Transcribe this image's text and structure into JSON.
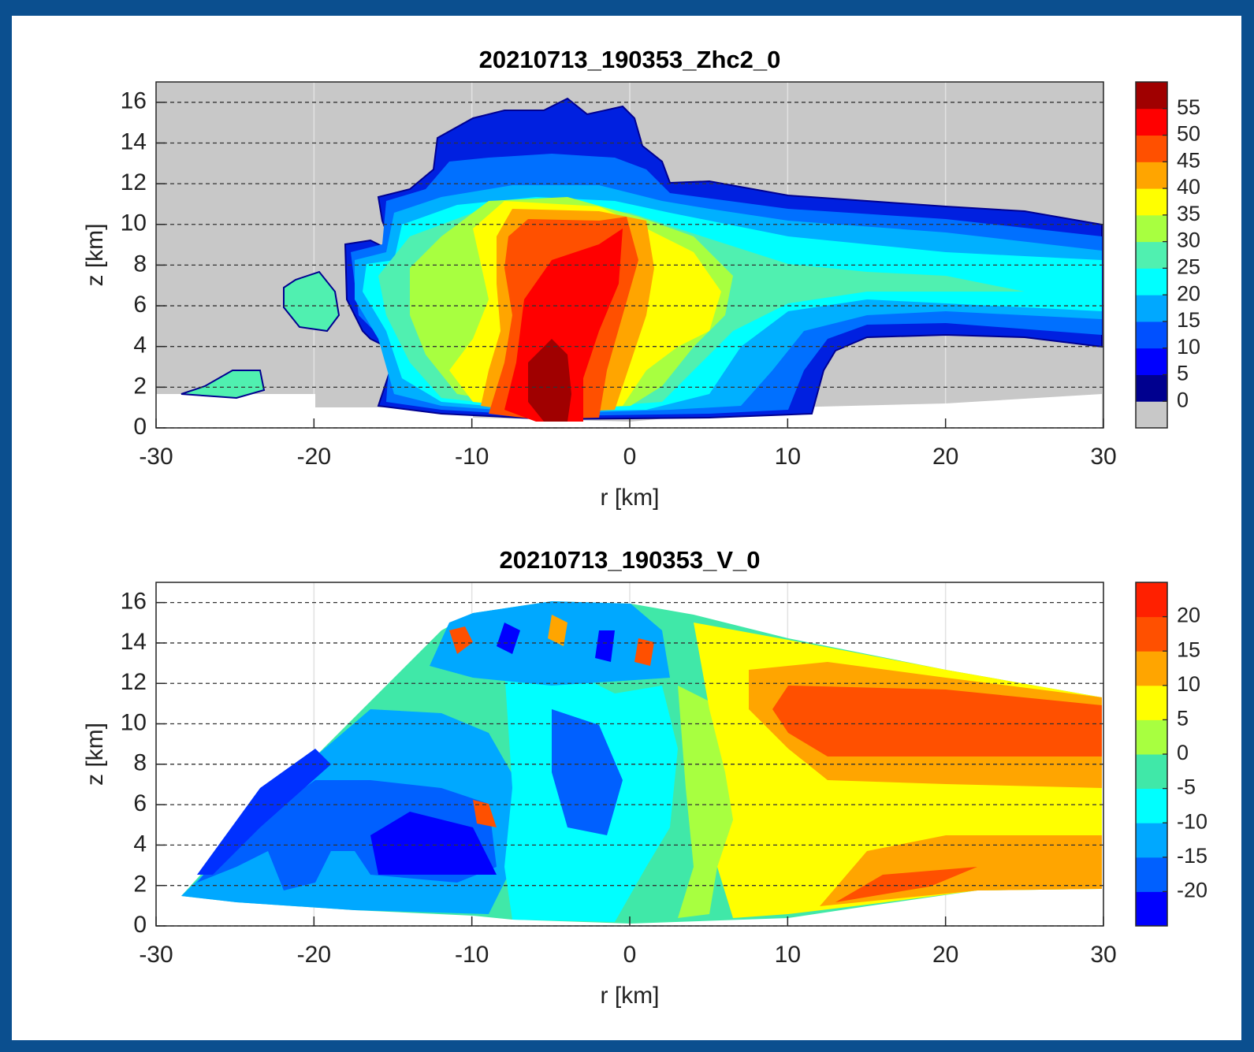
{
  "chart_data": [
    {
      "type": "contour",
      "title": "20210713_190353_Zhc2_0",
      "x_label": "r [km]",
      "y_label": "z [km]",
      "xlim": [
        -30,
        30
      ],
      "xticks": [
        -30,
        -20,
        -10,
        0,
        10,
        20,
        30
      ],
      "ylim": [
        0,
        17
      ],
      "yticks": [
        0,
        2,
        4,
        6,
        8,
        10,
        12,
        14,
        16
      ],
      "grid": true,
      "axes_color": "#c8c8c8",
      "colorbar": {
        "lim": [
          -5,
          60
        ],
        "ticks": [
          0,
          5,
          10,
          15,
          20,
          25,
          30,
          35,
          40,
          45,
          50,
          55
        ],
        "colors": [
          "#c8c8c8",
          "#00008f",
          "#0000ff",
          "#0050ff",
          "#00a8ff",
          "#00ffff",
          "#50f0b0",
          "#a8ff40",
          "#ffff00",
          "#ffa500",
          "#ff5000",
          "#ff0000",
          "#a00000"
        ]
      }
    },
    {
      "type": "contour",
      "title": "20210713_190353_V_0",
      "x_label": "r [km]",
      "y_label": "z [km]",
      "xlim": [
        -30,
        30
      ],
      "xticks": [
        -30,
        -20,
        -10,
        0,
        10,
        20,
        30
      ],
      "ylim": [
        0,
        17
      ],
      "yticks": [
        0,
        2,
        4,
        6,
        8,
        10,
        12,
        14,
        16
      ],
      "grid": true,
      "axes_color": "#ffffff",
      "colorbar": {
        "lim": [
          -25,
          25
        ],
        "ticks": [
          -20,
          -15,
          -10,
          -5,
          0,
          5,
          10,
          15,
          20
        ],
        "colors": [
          "#0000ff",
          "#0060ff",
          "#00a8ff",
          "#00ffff",
          "#40e8a8",
          "#a8ff40",
          "#ffff00",
          "#ffa500",
          "#ff5000",
          "#ff2000"
        ]
      }
    }
  ]
}
